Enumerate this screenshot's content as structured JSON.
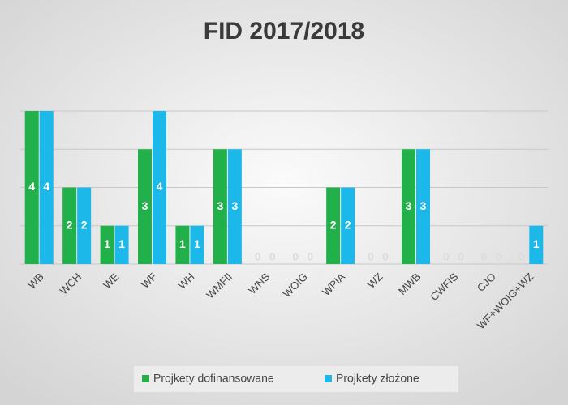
{
  "chart_data": {
    "type": "bar",
    "title": "FID 2017/2018",
    "categories": [
      "WB",
      "WCH",
      "WE",
      "WF",
      "WH",
      "WMFII",
      "WNS",
      "WOIG",
      "WPIA",
      "WZ",
      "MWB",
      "CWFIS",
      "CJO",
      "WF+WOIG+WZ"
    ],
    "series": [
      {
        "name": "Projkety dofinansowane",
        "color": "#22b04b",
        "values": [
          4,
          2,
          1,
          3,
          1,
          3,
          0,
          0,
          2,
          0,
          3,
          0,
          0,
          0
        ]
      },
      {
        "name": "Projkety złożone",
        "color": "#1db8ea",
        "values": [
          4,
          2,
          1,
          4,
          1,
          3,
          0,
          0,
          2,
          0,
          3,
          0,
          0,
          1
        ]
      }
    ],
    "ylim": [
      0,
      4
    ],
    "yticks": [
      0,
      1,
      2,
      3,
      4
    ],
    "grid": true,
    "legend": "bottom"
  }
}
